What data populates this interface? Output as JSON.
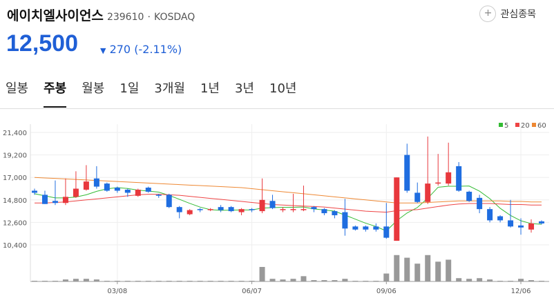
{
  "header": {
    "name": "에이치엘사이언스",
    "code": "239610",
    "separator": "·",
    "market": "KOSDAQ",
    "watch_button": "관심종목",
    "price": "12,500",
    "change": "270 (-2.11%)"
  },
  "tabs": {
    "items": [
      "일봉",
      "주봉",
      "월봉",
      "1일",
      "3개월",
      "1년",
      "3년",
      "10년"
    ],
    "active": 1
  },
  "chart_data": {
    "type": "candlestick",
    "categories": [
      null,
      null,
      null,
      null,
      null,
      null,
      null,
      null,
      "03/08",
      null,
      null,
      null,
      null,
      null,
      null,
      null,
      null,
      null,
      null,
      null,
      null,
      "06/07",
      null,
      null,
      null,
      null,
      null,
      null,
      null,
      null,
      null,
      null,
      null,
      null,
      "09/06",
      null,
      null,
      null,
      null,
      null,
      null,
      null,
      null,
      null,
      null,
      null,
      null,
      "12/06",
      null,
      null
    ],
    "open": [
      15700,
      15300,
      14700,
      14500,
      15100,
      15800,
      16900,
      16400,
      16000,
      15800,
      15200,
      16000,
      15300,
      15300,
      14100,
      13400,
      13900,
      13800,
      14100,
      14100,
      13600,
      13900,
      13700,
      14700,
      13800,
      13800,
      13800,
      14100,
      13900,
      13700,
      13600,
      12200,
      12200,
      12200,
      12200,
      10800,
      19200,
      15500,
      14600,
      16400,
      16400,
      18100,
      15600,
      15000,
      13900,
      13200,
      12800,
      12300,
      11900,
      12700
    ],
    "high": [
      15900,
      15700,
      16700,
      16900,
      17600,
      18200,
      18100,
      16500,
      16100,
      15900,
      15900,
      16100,
      15400,
      15400,
      14200,
      13900,
      14000,
      14000,
      14300,
      14200,
      14000,
      14000,
      16900,
      15300,
      14100,
      15400,
      16200,
      14200,
      14000,
      13800,
      14900,
      12300,
      12300,
      12500,
      14500,
      17000,
      20300,
      16500,
      21000,
      19300,
      20400,
      18500,
      15700,
      15300,
      14100,
      13300,
      14800,
      13000,
      12900,
      12800
    ],
    "low": [
      15300,
      14400,
      14300,
      14300,
      15000,
      15700,
      15900,
      15600,
      15500,
      15100,
      15100,
      15500,
      15000,
      14000,
      13000,
      13300,
      13600,
      13700,
      13600,
      13600,
      13300,
      13600,
      13500,
      13900,
      13600,
      13600,
      13700,
      13600,
      13300,
      13000,
      11300,
      11800,
      11700,
      11700,
      11000,
      10800,
      15500,
      14500,
      14400,
      16200,
      16200,
      15600,
      14600,
      13500,
      12600,
      12600,
      12100,
      11400,
      11600,
      12400
    ],
    "close": [
      15500,
      14400,
      14500,
      15100,
      15900,
      16600,
      16100,
      15700,
      15700,
      15500,
      15800,
      15600,
      15200,
      14100,
      13600,
      13800,
      13800,
      13900,
      13800,
      13700,
      13900,
      13800,
      14800,
      14000,
      13900,
      13900,
      13900,
      13900,
      13500,
      13300,
      12000,
      11900,
      11900,
      11900,
      11100,
      17000,
      15700,
      14600,
      16400,
      16500,
      17500,
      15700,
      14700,
      13900,
      12800,
      12800,
      12200,
      12100,
      12500,
      12500
    ],
    "up_color": "#e8383d",
    "down_color": "#1f6de0",
    "series": [
      {
        "name": "5",
        "color": "#33bb33",
        "values": [
          15400,
          15200,
          15000,
          15000,
          15080,
          15300,
          15640,
          15880,
          16000,
          15920,
          15760,
          15660,
          15560,
          15240,
          14860,
          14460,
          14100,
          13840,
          13780,
          13800,
          13820,
          13820,
          14000,
          14040,
          14080,
          14080,
          14100,
          13920,
          13820,
          13700,
          13320,
          12920,
          12520,
          12200,
          11760,
          12760,
          13520,
          14060,
          14960,
          16040,
          16140,
          16140,
          16160,
          15660,
          14920,
          13980,
          13280,
          12760,
          12480,
          12420
        ]
      },
      {
        "name": "20",
        "color": "#ee4444",
        "values": [
          14500,
          14500,
          14550,
          14600,
          14700,
          14800,
          14900,
          15000,
          15100,
          15200,
          15300,
          15350,
          15350,
          15300,
          15250,
          15150,
          15050,
          14950,
          14850,
          14750,
          14650,
          14550,
          14450,
          14350,
          14300,
          14250,
          14200,
          14150,
          14100,
          14000,
          13900,
          13800,
          13700,
          13650,
          13600,
          13750,
          13800,
          13850,
          14000,
          14150,
          14300,
          14400,
          14450,
          14450,
          14450,
          14400,
          14350,
          14350,
          14300,
          14300
        ]
      },
      {
        "name": "60",
        "color": "#ee8833",
        "values": [
          17000,
          16950,
          16900,
          16850,
          16800,
          16750,
          16700,
          16650,
          16600,
          16550,
          16500,
          16450,
          16400,
          16350,
          16300,
          16250,
          16200,
          16150,
          16100,
          16050,
          16000,
          15900,
          15800,
          15700,
          15600,
          15500,
          15400,
          15300,
          15200,
          15100,
          15000,
          14900,
          14800,
          14700,
          14600,
          14500,
          14500,
          14500,
          14550,
          14600,
          14650,
          14700,
          14700,
          14700,
          14700,
          14700,
          14650,
          14650,
          14600,
          14600
        ]
      }
    ],
    "ylim": [
      10400,
      21400
    ],
    "yticks": [
      {
        "value": 21400,
        "label": "21,400"
      },
      {
        "value": 19200,
        "label": "19,200"
      },
      {
        "value": 17000,
        "label": "17,000"
      },
      {
        "value": 14800,
        "label": "14,800"
      },
      {
        "value": 12600,
        "label": "12,600"
      },
      {
        "value": 10400,
        "label": "10,400"
      }
    ],
    "volume": {
      "color": "#999999",
      "ylim": [
        0,
        45
      ],
      "values": [
        1,
        1,
        1,
        3,
        4,
        4,
        3,
        1,
        1,
        1,
        1,
        1,
        1,
        1,
        1,
        1,
        1,
        1,
        1,
        1,
        1,
        1,
        22,
        4,
        3,
        4,
        8,
        2,
        2,
        2,
        4,
        1,
        1,
        1,
        12,
        40,
        36,
        27,
        40,
        30,
        33,
        5,
        4,
        5,
        3,
        1,
        1,
        4,
        2,
        1
      ]
    },
    "grid": true
  }
}
